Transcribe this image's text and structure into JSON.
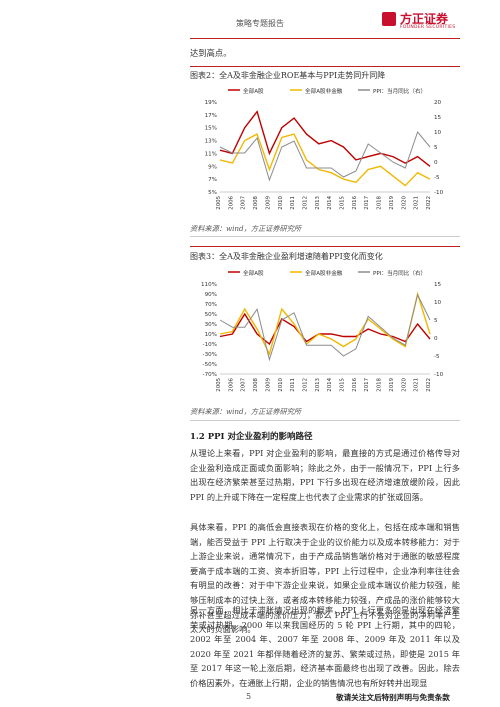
{
  "header": {
    "title": "策略专题报告",
    "logo_cn": "方正证券",
    "logo_en": "FOUNDER SECURITIES"
  },
  "intro_line": "达到高点。",
  "figure2": {
    "title": "图表2：全A及非金融企业ROE基本与PPI走势同升同降",
    "source": "资料来源：wind，方正证券研究所",
    "legend": [
      "全部A股",
      "全部A股非金融",
      "PPI：当月同比（右）"
    ],
    "left_ticks": [
      "19%",
      "17%",
      "15%",
      "13%",
      "11%",
      "9%",
      "7%",
      "5%"
    ],
    "right_ticks": [
      "20",
      "15",
      "10",
      "5",
      "0",
      "-5",
      "-10"
    ],
    "x_ticks": [
      "2005",
      "2006",
      "2007",
      "2008",
      "2009",
      "2010",
      "2011",
      "2012",
      "2013",
      "2014",
      "2015",
      "2016",
      "2017",
      "2018",
      "2019",
      "2020",
      "2021",
      "2022"
    ]
  },
  "figure3": {
    "title": "图表3：全A及非金融企业盈利增速随着PPI变化而变化",
    "source": "资料来源：wind，方正证券研究所",
    "legend": [
      "全部A股",
      "全部A股非金融",
      "PPI：当月同比（右）"
    ],
    "left_ticks": [
      "110%",
      "90%",
      "70%",
      "50%",
      "30%",
      "10%",
      "-10%",
      "-30%",
      "-50%",
      "-70%"
    ],
    "right_ticks": [
      "15",
      "10",
      "5",
      "0",
      "-5",
      "-10"
    ],
    "x_ticks": [
      "2005",
      "2006",
      "2007",
      "2008",
      "2009",
      "2010",
      "2011",
      "2012",
      "2013",
      "2014",
      "2015",
      "2016",
      "2017",
      "2018",
      "2019",
      "2020",
      "2021",
      "2022"
    ]
  },
  "colors": {
    "all_a": "#c00000",
    "non_fin": "#f2b800",
    "ppi": "#8c8c8c",
    "brand": "#c8102e"
  },
  "chart_data": [
    {
      "type": "line",
      "x": [
        2005,
        2006,
        2007,
        2008,
        2009,
        2010,
        2011,
        2012,
        2013,
        2014,
        2015,
        2016,
        2017,
        2018,
        2019,
        2020,
        2021,
        2022
      ],
      "series": [
        {
          "name": "全部A股",
          "axis": "left",
          "values": [
            11.5,
            11,
            15,
            17.5,
            11,
            15,
            16.5,
            14,
            12.5,
            13,
            12,
            10,
            10.5,
            11,
            10.5,
            9.5,
            10.5,
            9
          ]
        },
        {
          "name": "全部A股非金融",
          "axis": "left",
          "values": [
            10,
            9.5,
            13,
            14,
            8.5,
            13.5,
            14,
            10,
            8.5,
            8,
            7,
            6.5,
            8.5,
            9,
            7.5,
            6,
            8,
            7
          ]
        },
        {
          "name": "PPI：当月同比（右）",
          "axis": "right",
          "values": [
            5,
            3,
            3,
            8,
            -6,
            5,
            7,
            -2,
            -2,
            -2,
            -5,
            -3,
            6,
            3,
            0,
            -2,
            10,
            5
          ]
        }
      ],
      "ylim_left": [
        5,
        19
      ],
      "ylim_right": [
        -10,
        20
      ]
    },
    {
      "type": "line",
      "x": [
        2005,
        2006,
        2007,
        2008,
        2009,
        2010,
        2011,
        2012,
        2013,
        2014,
        2015,
        2016,
        2017,
        2018,
        2019,
        2020,
        2021,
        2022
      ],
      "series": [
        {
          "name": "全部A股",
          "axis": "left",
          "values": [
            5,
            10,
            50,
            10,
            -10,
            40,
            25,
            -5,
            10,
            10,
            5,
            5,
            20,
            10,
            5,
            -5,
            30,
            0
          ]
        },
        {
          "name": "全部A股非金融",
          "axis": "left",
          "values": [
            10,
            15,
            60,
            20,
            -30,
            60,
            30,
            -10,
            10,
            0,
            -15,
            0,
            40,
            20,
            0,
            -15,
            90,
            10
          ]
        },
        {
          "name": "PPI：当月同比（右）",
          "axis": "right",
          "values": [
            5,
            3,
            3,
            8,
            -6,
            5,
            7,
            -2,
            -2,
            -2,
            -5,
            -3,
            6,
            3,
            0,
            -2,
            12,
            5
          ]
        }
      ],
      "ylim_left": [
        -70,
        110
      ],
      "ylim_right": [
        -10,
        15
      ]
    }
  ],
  "section_title": "1.2 PPI 对企业盈利的影响路径",
  "paragraphs": [
    "从理论上来看，PPI 对企业盈利的影响，最直接的方式是通过价格传导对企业盈利造成正面或负面影响；除此之外，由于一般情况下，PPI 上行多出现在经济繁荣甚至过热期，PPI 下行多出现在经济增速放缓阶段，因此 PPI 的上升或下降在一定程度上也代表了企业需求的扩张或回落。",
    "具体来看，PPI 的高低会直接表现在价格的变化上，包括在成本端和销售端，能否受益于 PPI 上行取决于企业的议价能力以及成本转移能力：对于上游企业来说，通常情况下，由于产成品销售端价格对于通胀的敏感程度要高于成本端的工资、资本折旧等，PPI 上行过程中，企业净利率往往会有明显的改善：对于中下游企业来说，如果企业成本端议价能力较强，能够压制成本的过快上涨，或者成本转移能力较强，产成品的涨价能够较大弥补甚至超过成本端的涨价压力，那么 PPI 上行不会对企业的净利率产生太大的负面影响。",
    "另一方面，相比于滞胀情况出现的概率，PPI 上行更多的是出现在经济繁荣或过热期。2000 年以来我国经历的 5 轮 PPI 上行期，其中的四轮，2002 年至 2004 年、2007 年至 2008 年、2009 年及 2011 年以及 2020 年至 2021 年都伴随着经济的复苏、繁荣或过热，即使是 2015 年至 2017 年这一轮上涨后期，经济基本面最终也出现了改善。因此，除去价格因素外，在通胀上行期，企业的销售情况也有所好转并出现显"
  ],
  "footer": {
    "page_number": "5",
    "disclaimer": "敬请关注文后特别声明与免责条款"
  }
}
